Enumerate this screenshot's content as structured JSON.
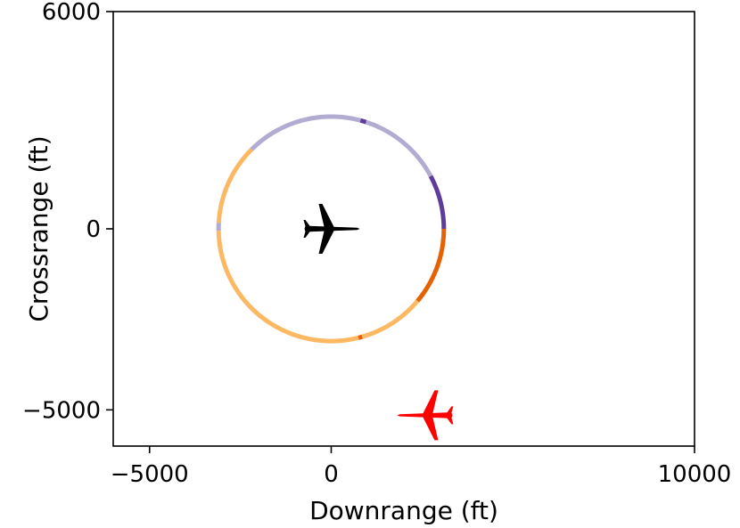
{
  "chart_data": {
    "type": "scatter",
    "title": "",
    "xlabel": "Downrange (ft)",
    "ylabel": "Crossrange (ft)",
    "xlim": [
      -6000,
      10000
    ],
    "ylim": [
      -6000,
      6000
    ],
    "x_ticks": [
      {
        "value": -5000,
        "label": "−5000"
      },
      {
        "value": 0,
        "label": "0"
      },
      {
        "value": 10000,
        "label": "10000"
      }
    ],
    "y_ticks": [
      {
        "value": 6000,
        "label": "6000"
      },
      {
        "value": 0,
        "label": "0"
      },
      {
        "value": -5000,
        "label": "−5000"
      }
    ],
    "grid": false,
    "ownship": {
      "x": 0,
      "y": 0,
      "heading_deg": 0,
      "color": "#000000"
    },
    "intruder": {
      "x": 2600,
      "y": -5150,
      "heading_deg": 180,
      "color": "#ff0000"
    },
    "ring": {
      "center": [
        0,
        0
      ],
      "radius": 3100,
      "segments": [
        {
          "from_deg": 0,
          "to_deg": 28,
          "color": "#5e3c99"
        },
        {
          "from_deg": 28,
          "to_deg": 72,
          "color": "#b2abd2"
        },
        {
          "from_deg": 72,
          "to_deg": 75,
          "color": "#5e3c99"
        },
        {
          "from_deg": 75,
          "to_deg": 135,
          "color": "#b2abd2"
        },
        {
          "from_deg": 135,
          "to_deg": 177,
          "color": "#fdb863"
        },
        {
          "from_deg": 177,
          "to_deg": 181,
          "color": "#b2abd2"
        },
        {
          "from_deg": 181,
          "to_deg": 284,
          "color": "#fdb863"
        },
        {
          "from_deg": 284,
          "to_deg": 286,
          "color": "#e66101"
        },
        {
          "from_deg": 286,
          "to_deg": 320,
          "color": "#fdb863"
        },
        {
          "from_deg": 320,
          "to_deg": 360,
          "color": "#e66101"
        }
      ]
    }
  }
}
